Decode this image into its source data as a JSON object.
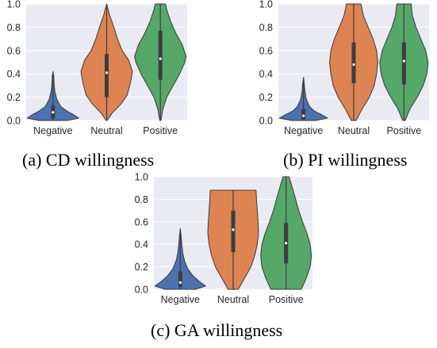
{
  "colors": {
    "background": "#eaeaf2",
    "grid": "#ffffff",
    "edge": "#3a3a3a",
    "box": "#3d3d3d",
    "median": "#ffffff",
    "negative": "#4c72b0",
    "neutral": "#dd8452",
    "positive": "#55a868"
  },
  "captions": {
    "a": "(a) CD willingness",
    "b": "(b) PI willingness",
    "c": "(c) GA willingness"
  },
  "chart_data": [
    {
      "type": "violin",
      "caption": "(a) CD willingness",
      "categories": [
        "Negative",
        "Neutral",
        "Positive"
      ],
      "ylim": [
        0,
        1.0
      ],
      "yticks": [
        0.0,
        0.2,
        0.4,
        0.6,
        0.8,
        1.0
      ],
      "ytick_labels": [
        "0.0",
        "0.2",
        "0.4",
        "0.6",
        "0.8",
        "1.0"
      ],
      "grid": true,
      "violins": [
        {
          "category": "Negative",
          "min": 0.0,
          "max": 0.42,
          "q1": 0.02,
          "median": 0.07,
          "q3": 0.13,
          "density": [
            [
              0.0,
              0.55
            ],
            [
              0.02,
              1.0
            ],
            [
              0.05,
              0.8
            ],
            [
              0.08,
              0.55
            ],
            [
              0.12,
              0.3
            ],
            [
              0.18,
              0.15
            ],
            [
              0.25,
              0.07
            ],
            [
              0.32,
              0.04
            ],
            [
              0.38,
              0.03
            ],
            [
              0.42,
              0.0
            ]
          ]
        },
        {
          "category": "Neutral",
          "min": 0.0,
          "max": 1.0,
          "q1": 0.2,
          "median": 0.41,
          "q3": 0.57,
          "density": [
            [
              0.0,
              0.02
            ],
            [
              0.06,
              0.2
            ],
            [
              0.14,
              0.55
            ],
            [
              0.22,
              0.8
            ],
            [
              0.32,
              0.92
            ],
            [
              0.42,
              1.0
            ],
            [
              0.52,
              0.85
            ],
            [
              0.6,
              0.6
            ],
            [
              0.7,
              0.42
            ],
            [
              0.8,
              0.28
            ],
            [
              0.9,
              0.12
            ],
            [
              1.0,
              0.0
            ]
          ]
        },
        {
          "category": "Positive",
          "min": 0.0,
          "max": 1.0,
          "q1": 0.35,
          "median": 0.53,
          "q3": 0.77,
          "density": [
            [
              0.0,
              0.02
            ],
            [
              0.1,
              0.1
            ],
            [
              0.2,
              0.25
            ],
            [
              0.3,
              0.5
            ],
            [
              0.4,
              0.75
            ],
            [
              0.5,
              0.95
            ],
            [
              0.55,
              1.0
            ],
            [
              0.65,
              0.85
            ],
            [
              0.75,
              0.6
            ],
            [
              0.85,
              0.4
            ],
            [
              0.95,
              0.25
            ],
            [
              1.0,
              0.2
            ]
          ]
        }
      ]
    },
    {
      "type": "violin",
      "caption": "(b) PI willingness",
      "categories": [
        "Negative",
        "Neutral",
        "Positive"
      ],
      "ylim": [
        0,
        1.0
      ],
      "yticks": [
        0.0,
        0.2,
        0.4,
        0.6,
        0.8,
        1.0
      ],
      "ytick_labels": [
        "0.0",
        "0.2",
        "0.4",
        "0.6",
        "0.8",
        "1.0"
      ],
      "grid": true,
      "violins": [
        {
          "category": "Negative",
          "min": 0.0,
          "max": 0.37,
          "q1": 0.01,
          "median": 0.04,
          "q3": 0.1,
          "density": [
            [
              0.0,
              0.5
            ],
            [
              0.02,
              1.0
            ],
            [
              0.05,
              0.75
            ],
            [
              0.08,
              0.45
            ],
            [
              0.12,
              0.25
            ],
            [
              0.18,
              0.12
            ],
            [
              0.25,
              0.06
            ],
            [
              0.32,
              0.03
            ],
            [
              0.37,
              0.0
            ]
          ]
        },
        {
          "category": "Neutral",
          "min": 0.0,
          "max": 1.0,
          "q1": 0.32,
          "median": 0.48,
          "q3": 0.67,
          "density": [
            [
              0.0,
              0.1
            ],
            [
              0.1,
              0.35
            ],
            [
              0.2,
              0.65
            ],
            [
              0.3,
              0.85
            ],
            [
              0.4,
              0.95
            ],
            [
              0.5,
              1.0
            ],
            [
              0.6,
              0.95
            ],
            [
              0.7,
              0.8
            ],
            [
              0.8,
              0.6
            ],
            [
              0.9,
              0.4
            ],
            [
              1.0,
              0.3
            ]
          ]
        },
        {
          "category": "Positive",
          "min": 0.0,
          "max": 1.0,
          "q1": 0.31,
          "median": 0.51,
          "q3": 0.67,
          "density": [
            [
              0.0,
              0.05
            ],
            [
              0.1,
              0.25
            ],
            [
              0.2,
              0.55
            ],
            [
              0.3,
              0.8
            ],
            [
              0.4,
              0.95
            ],
            [
              0.5,
              1.0
            ],
            [
              0.6,
              0.9
            ],
            [
              0.7,
              0.7
            ],
            [
              0.8,
              0.5
            ],
            [
              0.9,
              0.35
            ],
            [
              1.0,
              0.3
            ]
          ]
        }
      ]
    },
    {
      "type": "violin",
      "caption": "(c) GA willingness",
      "categories": [
        "Negative",
        "Neutral",
        "Positive"
      ],
      "ylim": [
        0,
        1.0
      ],
      "yticks": [
        0.0,
        0.2,
        0.4,
        0.6,
        0.8,
        1.0
      ],
      "ytick_labels": [
        "0.0",
        "0.2",
        "0.4",
        "0.6",
        "0.8",
        "1.0"
      ],
      "grid": true,
      "violins": [
        {
          "category": "Negative",
          "min": 0.0,
          "max": 0.54,
          "q1": 0.02,
          "median": 0.06,
          "q3": 0.16,
          "density": [
            [
              0.0,
              0.6
            ],
            [
              0.03,
              1.0
            ],
            [
              0.07,
              0.75
            ],
            [
              0.12,
              0.5
            ],
            [
              0.18,
              0.3
            ],
            [
              0.25,
              0.17
            ],
            [
              0.32,
              0.1
            ],
            [
              0.4,
              0.06
            ],
            [
              0.48,
              0.03
            ],
            [
              0.54,
              0.0
            ]
          ]
        },
        {
          "category": "Neutral",
          "min": 0.0,
          "max": 0.88,
          "q1": 0.33,
          "median": 0.53,
          "q3": 0.7,
          "density": [
            [
              0.0,
              0.2
            ],
            [
              0.1,
              0.45
            ],
            [
              0.2,
              0.7
            ],
            [
              0.3,
              0.85
            ],
            [
              0.4,
              0.95
            ],
            [
              0.5,
              1.0
            ],
            [
              0.6,
              0.98
            ],
            [
              0.7,
              0.95
            ],
            [
              0.8,
              0.92
            ],
            [
              0.88,
              0.9
            ]
          ]
        },
        {
          "category": "Positive",
          "min": 0.0,
          "max": 1.0,
          "q1": 0.23,
          "median": 0.41,
          "q3": 0.59,
          "density": [
            [
              0.0,
              0.6
            ],
            [
              0.1,
              0.8
            ],
            [
              0.2,
              0.95
            ],
            [
              0.3,
              1.0
            ],
            [
              0.4,
              0.95
            ],
            [
              0.5,
              0.82
            ],
            [
              0.6,
              0.65
            ],
            [
              0.7,
              0.5
            ],
            [
              0.8,
              0.38
            ],
            [
              0.9,
              0.25
            ],
            [
              1.0,
              0.12
            ]
          ]
        }
      ]
    }
  ]
}
